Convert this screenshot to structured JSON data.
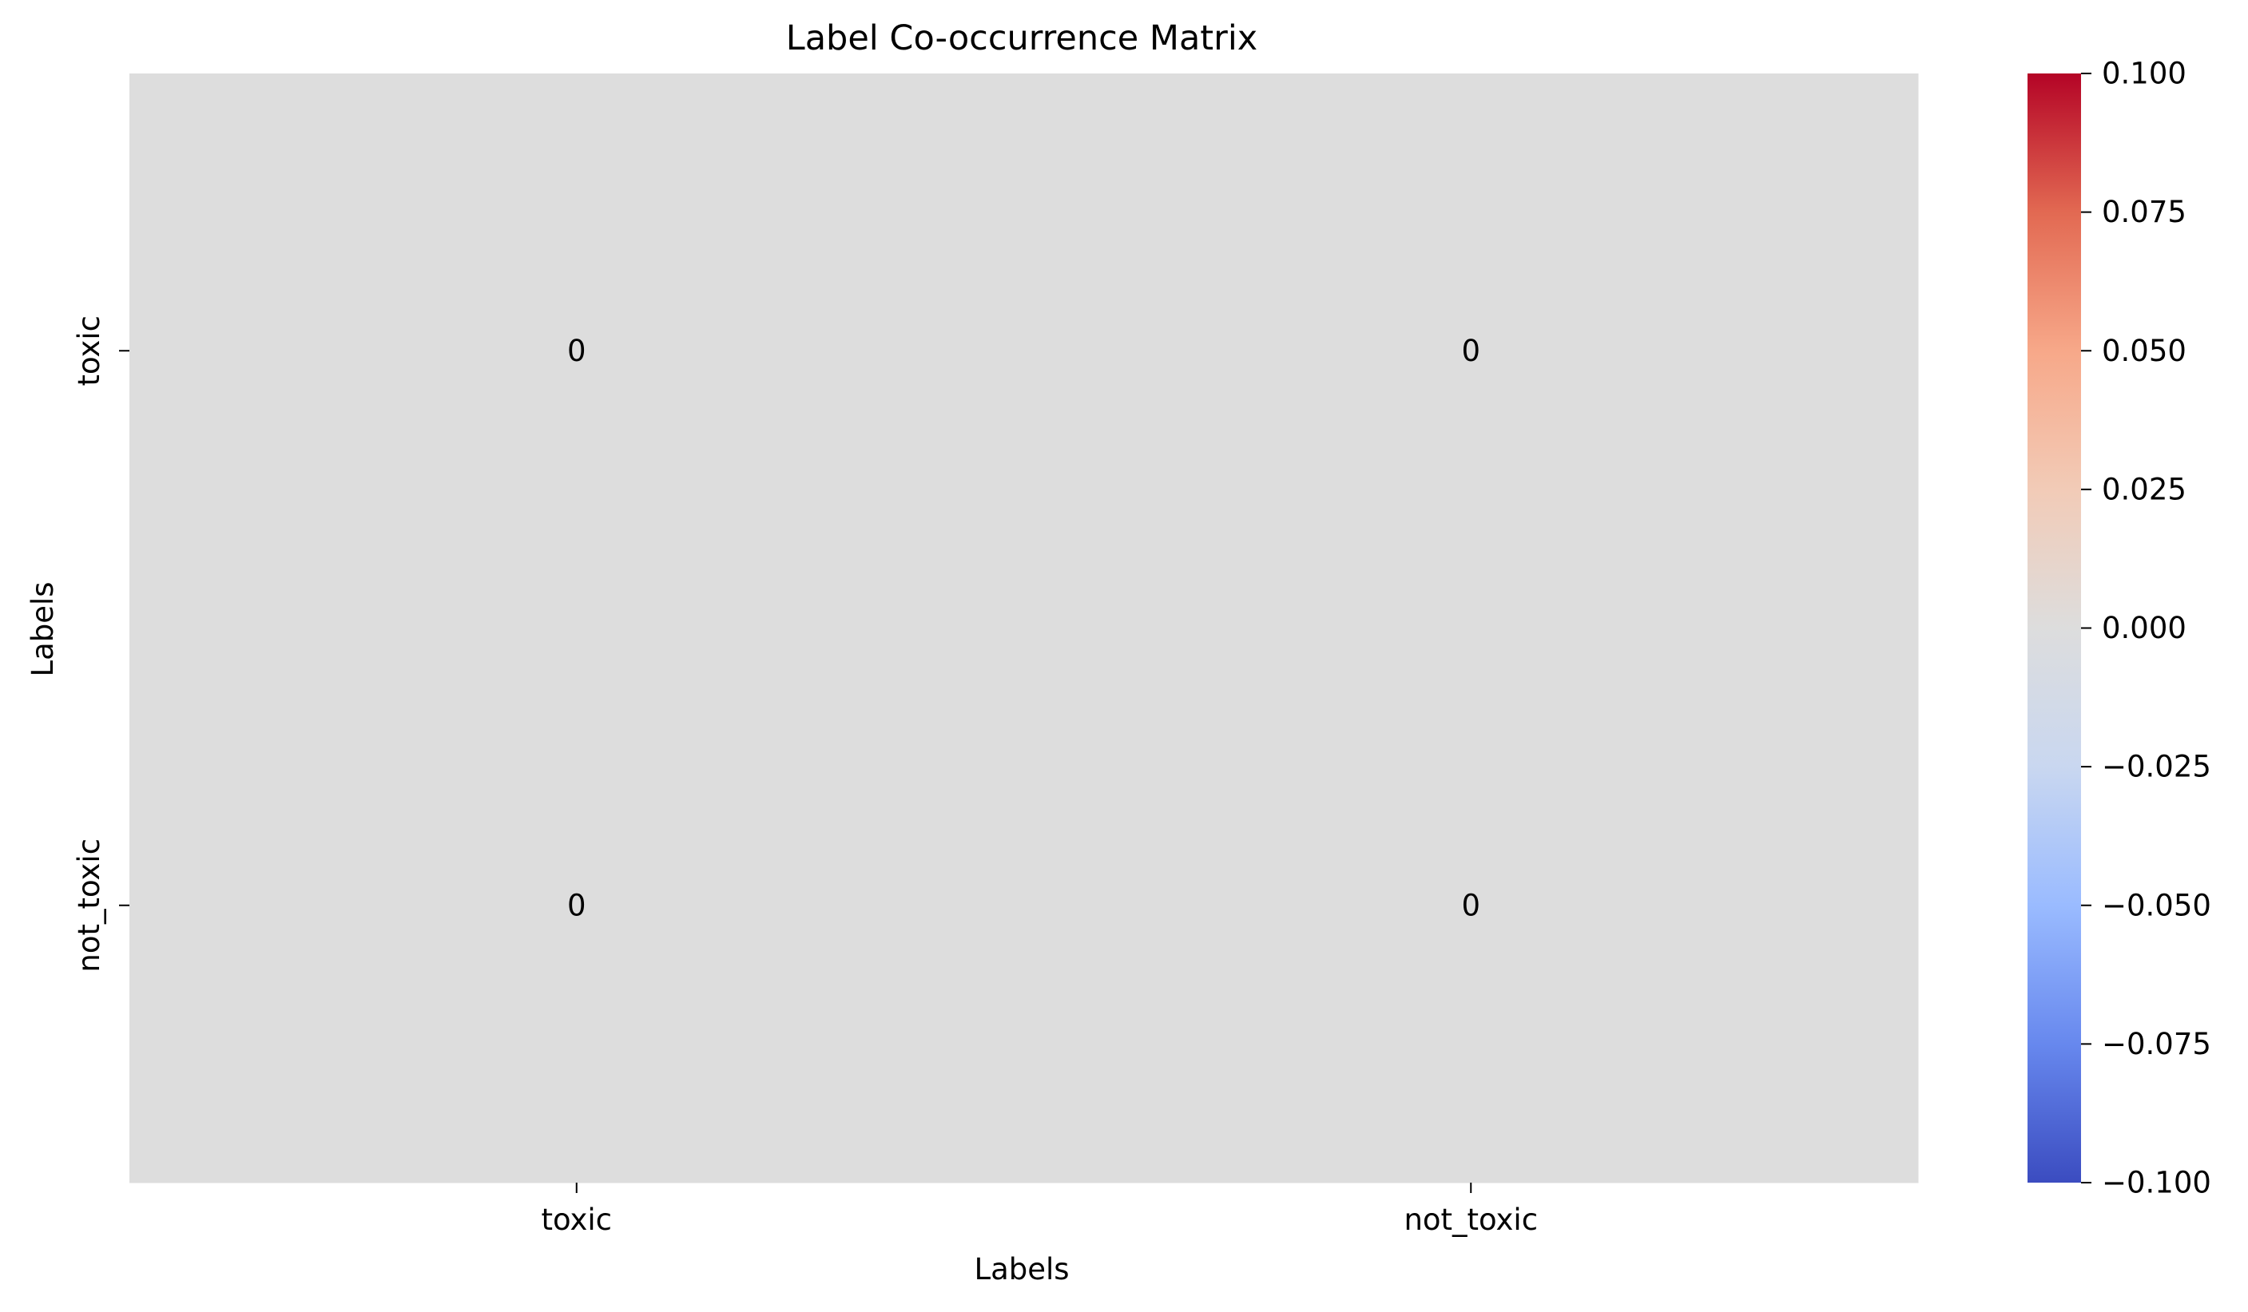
{
  "chart_data": {
    "type": "heatmap",
    "title": "Label Co-occurrence Matrix",
    "xlabel": "Labels",
    "ylabel": "Labels",
    "x_categories": [
      "toxic",
      "not_toxic"
    ],
    "y_categories": [
      "toxic",
      "not_toxic"
    ],
    "values": [
      [
        0,
        0
      ],
      [
        0,
        0
      ]
    ],
    "annotations": [
      [
        "0",
        "0"
      ],
      [
        "0",
        "0"
      ]
    ],
    "colormap": "coolwarm",
    "colorbar": {
      "vmin": -0.1,
      "vmax": 0.1,
      "ticks": [
        -0.1,
        -0.075,
        -0.05,
        -0.025,
        0.0,
        0.025,
        0.05,
        0.075,
        0.1
      ],
      "tick_labels": [
        "−0.100",
        "−0.075",
        "−0.050",
        "−0.025",
        "0.000",
        "0.025",
        "0.050",
        "0.075",
        "0.100"
      ],
      "colors": [
        "#3b4cc0",
        "#6788ee",
        "#9abbff",
        "#c9d7f0",
        "#dddddd",
        "#f2cbb7",
        "#f7a889",
        "#e26952",
        "#b40426"
      ]
    },
    "grid": false
  }
}
